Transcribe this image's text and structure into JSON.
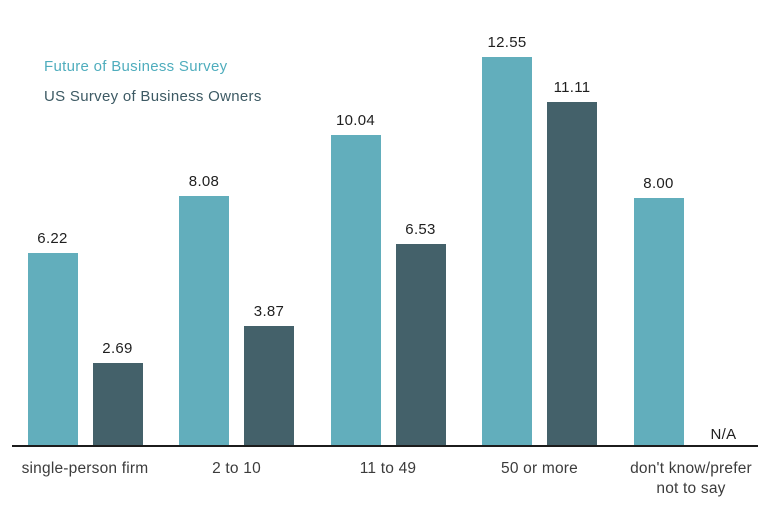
{
  "legend": {
    "items": [
      {
        "label": "Future of Business Survey",
        "color": "#4fadbd"
      },
      {
        "label": "US Survey of Business Owners",
        "color": "#3d5a64"
      }
    ]
  },
  "chart_data": {
    "type": "bar",
    "title": "",
    "categories": [
      "single-person firm",
      "2 to 10",
      "11 to 49",
      "50 or more",
      "don't know/prefer\nnot to say"
    ],
    "series": [
      {
        "name": "Future of Business Survey",
        "color": "#62aebc",
        "values": [
          6.22,
          8.08,
          10.04,
          12.55,
          8.0
        ],
        "labels": [
          "6.22",
          "8.08",
          "10.04",
          "12.55",
          "8.00"
        ]
      },
      {
        "name": "US Survey of Business Owners",
        "color": "#44616a",
        "values": [
          2.69,
          3.87,
          6.53,
          11.11,
          null
        ],
        "labels": [
          "2.69",
          "3.87",
          "6.53",
          "11.11",
          "N/A"
        ]
      }
    ],
    "xlabel": "",
    "ylabel": "",
    "ylim": [
      0,
      13.5
    ],
    "grid": false,
    "legend_position": "top-left",
    "value_labels": true,
    "na_text": "N/A"
  }
}
